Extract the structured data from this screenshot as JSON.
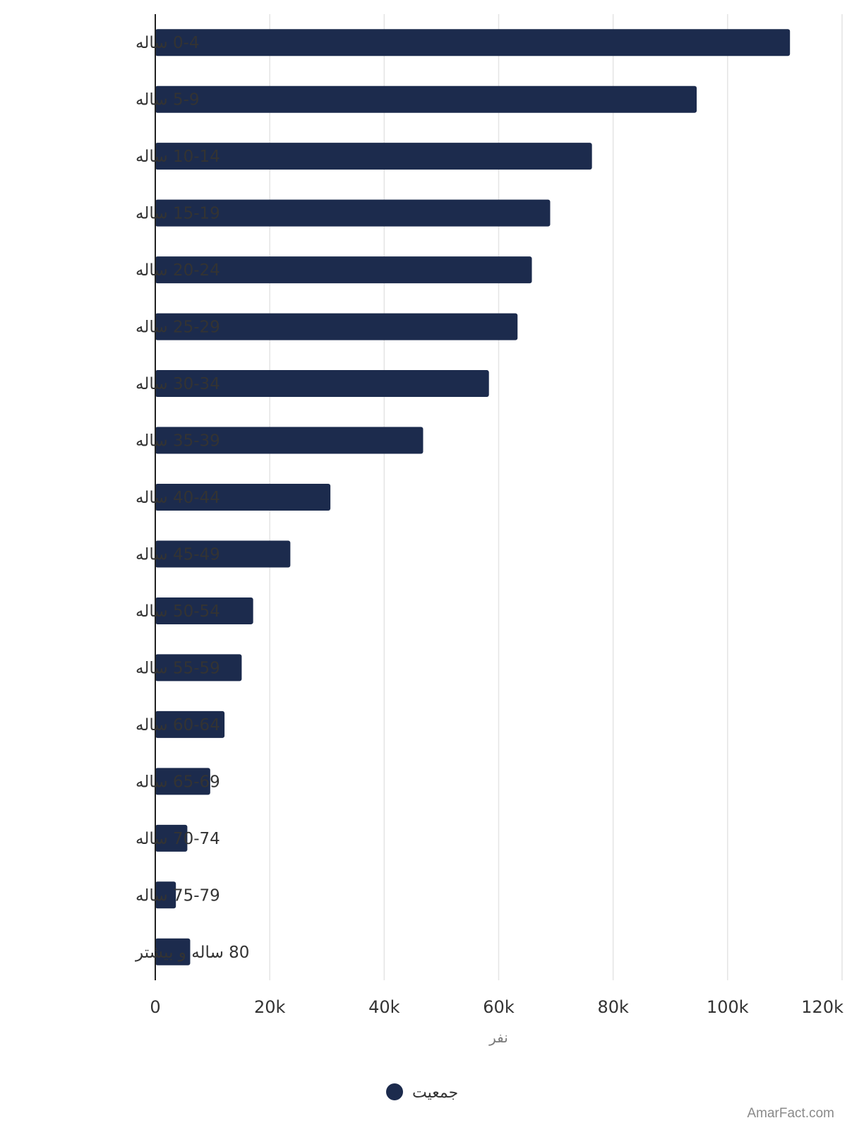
{
  "chart_data": {
    "type": "bar",
    "orientation": "horizontal",
    "categories": [
      "0-4 ساله",
      "5-9 ساله",
      "10-14 ساله",
      "15-19 ساله",
      "20-24 ساله",
      "25-29 ساله",
      "30-34 ساله",
      "35-39 ساله",
      "40-44 ساله",
      "45-49 ساله",
      "50-54 ساله",
      "55-59 ساله",
      "60-64 ساله",
      "65-69 ساله",
      "70-74 ساله",
      "75-79 ساله",
      "80 ساله و بیشتر"
    ],
    "series": [
      {
        "name": "جمعیت",
        "color": "#1c2b4d",
        "values": [
          110900,
          94600,
          76300,
          69000,
          65800,
          63300,
          58300,
          46800,
          30600,
          23600,
          17100,
          15100,
          12100,
          9600,
          5600,
          3600,
          6100
        ]
      }
    ],
    "x_ticks": [
      "0",
      "20k",
      "40k",
      "60k",
      "80k",
      "100k",
      "120k"
    ],
    "x_tick_values": [
      0,
      20000,
      40000,
      60000,
      80000,
      100000,
      120000
    ],
    "xlim": [
      0,
      120000
    ],
    "xlabel": "نفر",
    "grid": true,
    "legend": {
      "placement": "bottom-center",
      "label": "جمعیت"
    }
  },
  "watermark": "AmarFact.com"
}
